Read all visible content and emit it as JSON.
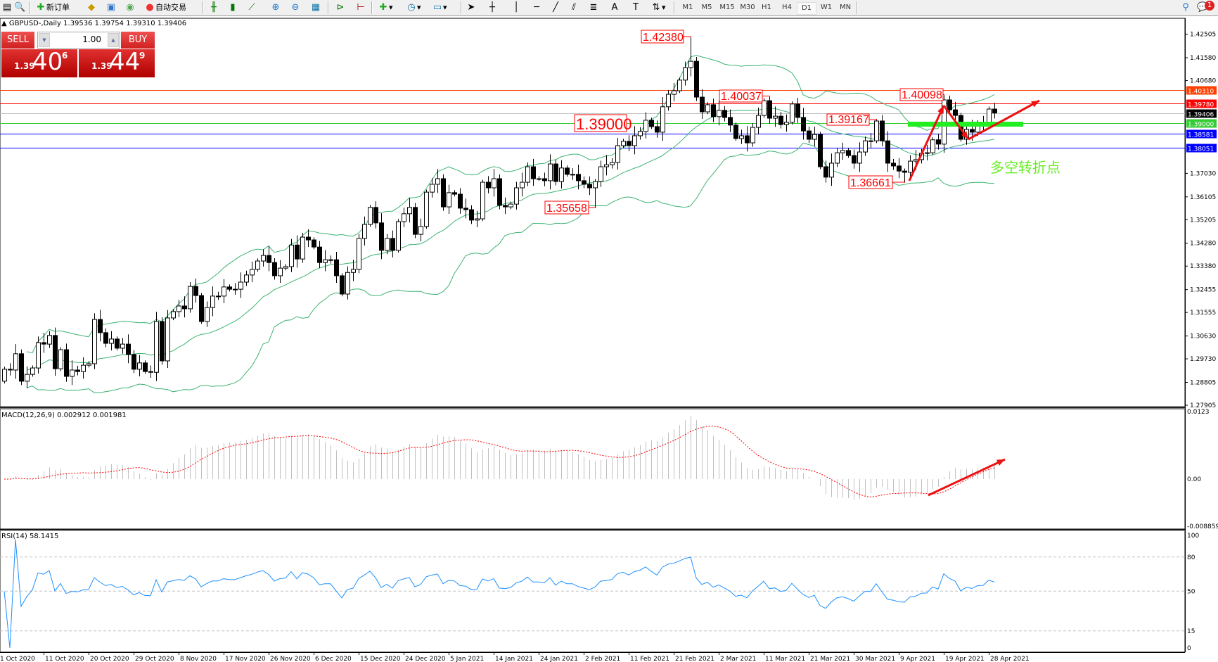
{
  "toolbar": {
    "new_order": "新订单",
    "auto_trading": "自动交易",
    "periods": [
      "M1",
      "M5",
      "M15",
      "M30",
      "H1",
      "H4",
      "D1",
      "W1",
      "MN"
    ],
    "selected_period": "D1",
    "notification_count": "1"
  },
  "chart": {
    "symbol_line": "GBPUSD-,Daily  1.39536 1.39754 1.39310 1.39406",
    "trade_panel": {
      "sell_label": "SELL",
      "buy_label": "BUY",
      "lot": "1.00",
      "sell_price": {
        "prefix": "1.39",
        "big": "40",
        "sup": "6"
      },
      "buy_price": {
        "prefix": "1.39",
        "big": "44",
        "sup": "9"
      }
    },
    "annotation_text": "多空转折点",
    "price_labels": [
      "1.42380",
      "1.39000",
      "1.35658",
      "1.40037",
      "1.39167",
      "1.36661",
      "1.40098"
    ],
    "price_axis_ticks": [
      "1.42505",
      "1.41580",
      "1.40680",
      "1.37030",
      "1.36105",
      "1.35205",
      "1.34280",
      "1.33380",
      "1.32455",
      "1.31555",
      "1.30630",
      "1.29730",
      "1.28805",
      "1.27905"
    ],
    "horizontal_lines": [
      {
        "price": "1.40310",
        "color": "#ff4000"
      },
      {
        "price": "1.39780",
        "color": "#ff0000"
      },
      {
        "price": "1.39406",
        "color": "#000000",
        "line_color": "#c0c0c0"
      },
      {
        "price": "1.39000",
        "color": "#32cd32"
      },
      {
        "price": "1.38581",
        "color": "#0000ff"
      },
      {
        "price": "1.38051",
        "color": "#0000ff"
      }
    ],
    "date_labels": [
      "1 Oct 2020",
      "11 Oct 2020",
      "20 Oct 2020",
      "29 Oct 2020",
      "8 Nov 2020",
      "17 Nov 2020",
      "26 Nov 2020",
      "6 Dec 2020",
      "15 Dec 2020",
      "24 Dec 2020",
      "5 Jan 2021",
      "14 Jan 2021",
      "24 Jan 2021",
      "2 Feb 2021",
      "11 Feb 2021",
      "21 Feb 2021",
      "2 Mar 2021",
      "11 Mar 2021",
      "21 Mar 2021",
      "30 Mar 2021",
      "9 Apr 2021",
      "19 Apr 2021",
      "28 Apr 2021"
    ],
    "colors": {
      "bands": "#3cb371",
      "annotation": "#ff0000",
      "macd_hist": "#c0c0c0",
      "macd_signal": "#ff0000",
      "rsi": "#1e90ff"
    }
  },
  "macd": {
    "label": "MACD(12,26,9) 0.002912 0.001981",
    "axis": [
      "0.0123",
      "0.00",
      "-0.008859"
    ]
  },
  "rsi": {
    "label": "RSI(14) 58.1415",
    "axis": [
      "100",
      "80",
      "50",
      "15",
      "0"
    ]
  },
  "chart_data": {
    "type": "candlestick",
    "symbol": "GBPUSD",
    "timeframe": "Daily",
    "first_open": 1.2885,
    "closes": [
      1.2932,
      1.2929,
      1.2993,
      1.2885,
      1.2912,
      1.2937,
      1.3037,
      1.3031,
      1.3065,
      1.2934,
      1.3009,
      1.2904,
      1.2929,
      1.2923,
      1.2948,
      1.2954,
      1.3128,
      1.3076,
      1.3034,
      1.3051,
      1.3015,
      1.3031,
      1.299,
      1.2932,
      1.2957,
      1.2923,
      1.292,
      1.312,
      1.2965,
      1.3134,
      1.3159,
      1.3181,
      1.317,
      1.3258,
      1.3222,
      1.312,
      1.3175,
      1.322,
      1.322,
      1.3256,
      1.3247,
      1.3247,
      1.3275,
      1.3303,
      1.3325,
      1.3358,
      1.338,
      1.3352,
      1.33,
      1.333,
      1.3336,
      1.3421,
      1.3366,
      1.3452,
      1.3441,
      1.3413,
      1.3352,
      1.3363,
      1.3363,
      1.33,
      1.3228,
      1.3313,
      1.3325,
      1.3447,
      1.3502,
      1.3569,
      1.3508,
      1.34,
      1.3447,
      1.34,
      1.3513,
      1.3544,
      1.3569,
      1.3463,
      1.3494,
      1.3629,
      1.366,
      1.3682,
      1.3571,
      1.3627,
      1.3621,
      1.3566,
      1.356,
      1.3519,
      1.3524,
      1.3668,
      1.3646,
      1.3682,
      1.3577,
      1.3571,
      1.3582,
      1.3646,
      1.3668,
      1.3729,
      1.3682,
      1.3682,
      1.3674,
      1.374,
      1.3671,
      1.3724,
      1.3699,
      1.3699,
      1.3674,
      1.366,
      1.3646,
      1.3671,
      1.3729,
      1.3737,
      1.3746,
      1.3812,
      1.3829,
      1.3812,
      1.3851,
      1.3868,
      1.3912,
      1.3887,
      1.3865,
      1.3965,
      1.4014,
      1.4028,
      1.407,
      1.4119,
      1.4144,
      1.4003,
      1.3945,
      1.3973,
      1.3926,
      1.3951,
      1.3923,
      1.3893,
      1.384,
      1.3851,
      1.3823,
      1.3884,
      1.3931,
      1.3989,
      1.392,
      1.3928,
      1.3895,
      1.3904,
      1.3976,
      1.3923,
      1.387,
      1.3837,
      1.3856,
      1.3729,
      1.3688,
      1.3743,
      1.3784,
      1.3793,
      1.3773,
      1.3743,
      1.3787,
      1.3831,
      1.3831,
      1.3909,
      1.3831,
      1.3743,
      1.3732,
      1.3712,
      1.3707,
      1.3751,
      1.3757,
      1.3782,
      1.3784,
      1.3835,
      1.3818,
      1.3992,
      1.3953,
      1.3931,
      1.3837,
      1.3876,
      1.3865,
      1.3895,
      1.3898,
      1.3956,
      1.39406
    ],
    "marked_highs": [
      1.4238,
      1.40037,
      1.39167,
      1.40098
    ],
    "marked_lows": [
      1.35658,
      1.36661
    ],
    "indicators": [
      "Bollinger Bands",
      "MACD(12,26,9)",
      "RSI(14)"
    ],
    "rsi_levels": [
      80,
      50,
      15
    ],
    "ylim": [
      1.27905,
      1.42505
    ],
    "macd_ylim": [
      -0.008859,
      0.0123
    ],
    "rsi_ylim": [
      0,
      100
    ]
  }
}
